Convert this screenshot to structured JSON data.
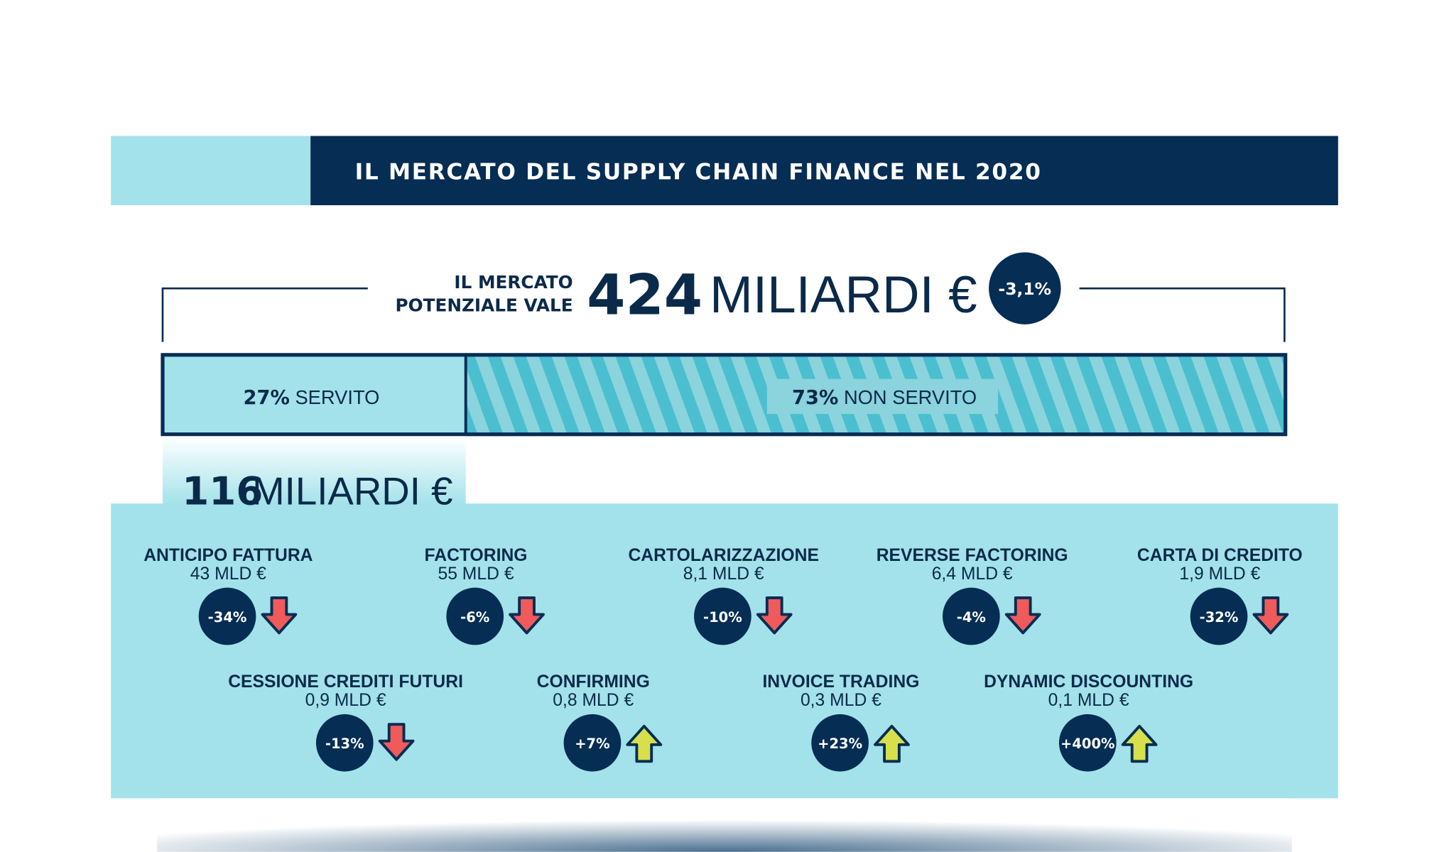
{
  "header": {
    "title": "IL MERCATO DEL SUPPLY CHAIN FINANCE NEL 2020"
  },
  "market": {
    "label_lines": [
      "IL MERCATO",
      "POTENZIALE VALE"
    ],
    "amount": "424",
    "unit": "MILIARDI €",
    "change": "-3,1%"
  },
  "bar": {
    "served": {
      "percent": "27%",
      "label": "SERVITO"
    },
    "non_served": {
      "percent": "73%",
      "label": "NON SERVITO"
    }
  },
  "served_total": {
    "amount": "116",
    "unit": "MILIARDI €"
  },
  "items": [
    {
      "name": "ANTICIPO FATTURA",
      "amount": "43 MLD €",
      "change": "-34%"
    },
    {
      "name": "FACTORING",
      "amount": "55 MLD €",
      "change": "-6%"
    },
    {
      "name": "CARTOLARIZZAZIONE",
      "amount": "8,1 MLD €",
      "change": "-10%"
    },
    {
      "name": "REVERSE FACTORING",
      "amount": "6,4 MLD €",
      "change": "-4%"
    },
    {
      "name": "CARTA DI CREDITO",
      "amount": "1,9 MLD €",
      "change": "-32%"
    },
    {
      "name": "CESSIONE CREDITI FUTURI",
      "amount": "0,9 MLD €",
      "change": "-13%"
    },
    {
      "name": "CONFIRMING",
      "amount": "0,8 MLD €",
      "change": "+7%"
    },
    {
      "name": "INVOICE TRADING",
      "amount": "0,3 MLD €",
      "change": "+23%"
    },
    {
      "name": "DYNAMIC DISCOUNTING",
      "amount": "0,1 MLD €",
      "change": "+400%"
    }
  ]
}
